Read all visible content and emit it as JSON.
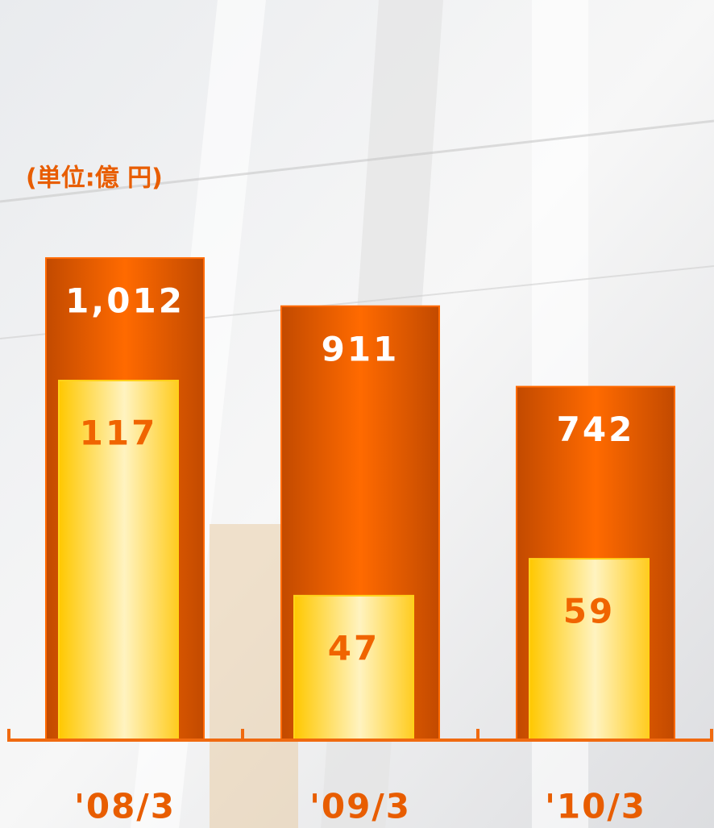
{
  "chart_data": {
    "type": "bar",
    "title": "(単位:億 円)",
    "categories": [
      "'08/3",
      "'09/3",
      "'10/3"
    ],
    "series": [
      {
        "color": "#ff6a00",
        "values": [
          1012,
          911,
          742
        ],
        "value_labels": [
          "1,012",
          "911",
          "742"
        ]
      },
      {
        "color": "#ffd21a",
        "values": [
          117,
          47,
          59
        ],
        "axis": "y2"
      }
    ],
    "ylim": [
      0,
      1200
    ],
    "y2lim": [
      0,
      186
    ],
    "grid": false
  }
}
